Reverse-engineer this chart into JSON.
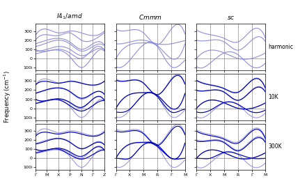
{
  "col_titles": [
    "$I4_1/amd$",
    "$Cmmm$",
    "$sc$"
  ],
  "row_labels": [
    "harmonic",
    "10K",
    "300K"
  ],
  "ylabel": "Frequency (cm$^{-1}$)",
  "yticks": [
    300,
    200,
    100,
    0,
    -100
  ],
  "yticklabels": [
    "300",
    "200",
    "100",
    "0",
    "100i"
  ],
  "ylim": [
    -130,
    380
  ],
  "col0_xticks": [
    0,
    1,
    2,
    3,
    4,
    5,
    6
  ],
  "col0_xticklabels": [
    "Γ",
    "M",
    "X",
    "P",
    "N",
    "Γ",
    "Z"
  ],
  "col1_xticks": [
    0,
    1,
    2,
    3,
    4,
    5
  ],
  "col1_xticklabels": [
    "Γ",
    "X",
    "M",
    "R",
    "Γ",
    "M"
  ],
  "col2_xticks": [
    0,
    1,
    2,
    3,
    4,
    5
  ],
  "col2_xticklabels": [
    "Γ",
    "X",
    "M",
    "R",
    "Γ",
    "M"
  ],
  "color_light": "#8888dd",
  "color_dark": "#0000bb",
  "color_mid": "#4444cc"
}
